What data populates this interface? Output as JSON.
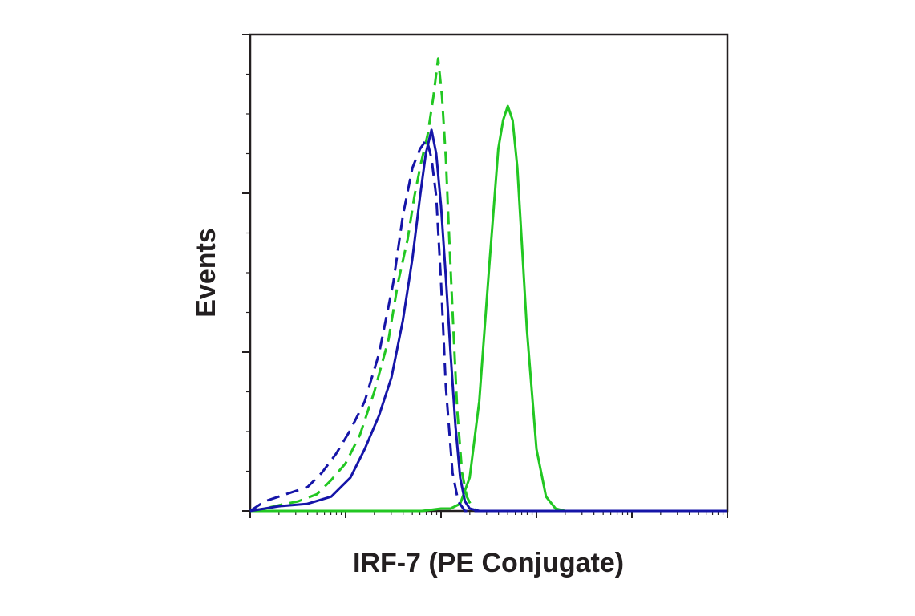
{
  "chart_data": {
    "type": "line",
    "title": "",
    "xlabel": "IRF-7 (PE Conjugate)",
    "ylabel": "Events",
    "x_scale": "log",
    "x_decades": 5,
    "xlim": [
      0,
      5
    ],
    "ylim": [
      0,
      100
    ],
    "grid": false,
    "legend": "none",
    "series": [
      {
        "color": "#22c722",
        "dash": true,
        "x": [
          0.0,
          0.15,
          0.3,
          0.5,
          0.7,
          0.85,
          1.0,
          1.15,
          1.3,
          1.45,
          1.55,
          1.65,
          1.72,
          1.79,
          1.86,
          1.92,
          1.97,
          2.01,
          2.05,
          2.08,
          2.12,
          2.17,
          2.22,
          2.27,
          2.32,
          2.37,
          2.5,
          3.0,
          5.0
        ],
        "y": [
          0,
          0.5,
          1.2,
          2.0,
          3.5,
          6.5,
          10,
          16,
          25,
          36,
          48,
          57,
          66,
          73,
          79,
          87,
          95,
          87,
          74,
          60,
          42,
          21,
          8,
          3,
          1,
          0,
          0,
          0,
          0
        ]
      },
      {
        "color": "#22c722",
        "dash": false,
        "x": [
          0.0,
          1.5,
          1.8,
          2.0,
          2.1,
          2.2,
          2.3,
          2.4,
          2.5,
          2.6,
          2.65,
          2.7,
          2.75,
          2.8,
          2.85,
          2.9,
          3.0,
          3.1,
          3.2,
          3.3,
          3.4,
          5.0
        ],
        "y": [
          0,
          0,
          0,
          0.5,
          0.5,
          1.5,
          7,
          23,
          50,
          76,
          82,
          85,
          82,
          72,
          55,
          38,
          13,
          3,
          0.5,
          0,
          0,
          0
        ]
      },
      {
        "color": "#1515a8",
        "dash": true,
        "x": [
          0.0,
          0.15,
          0.3,
          0.45,
          0.6,
          0.75,
          0.9,
          1.05,
          1.2,
          1.35,
          1.5,
          1.6,
          1.7,
          1.78,
          1.85,
          1.9,
          1.95,
          2.0,
          2.05,
          2.12,
          2.18,
          2.25,
          2.35,
          5.0
        ],
        "y": [
          0,
          2,
          3,
          4,
          5,
          8,
          12,
          17,
          23,
          33,
          48,
          62,
          72,
          76,
          78,
          74,
          66,
          48,
          26,
          8,
          2,
          0,
          0,
          0
        ]
      },
      {
        "color": "#1515a8",
        "dash": false,
        "x": [
          0.0,
          0.3,
          0.6,
          0.85,
          1.05,
          1.2,
          1.35,
          1.48,
          1.6,
          1.7,
          1.78,
          1.84,
          1.9,
          1.95,
          2.0,
          2.05,
          2.1,
          2.15,
          2.2,
          2.25,
          2.3,
          2.4,
          2.6,
          5.0
        ],
        "y": [
          0,
          1,
          1.5,
          3,
          7,
          13,
          20,
          28,
          40,
          53,
          66,
          75,
          80,
          75,
          64,
          49,
          33,
          18,
          7,
          2,
          0.5,
          0,
          0,
          0
        ]
      }
    ]
  }
}
